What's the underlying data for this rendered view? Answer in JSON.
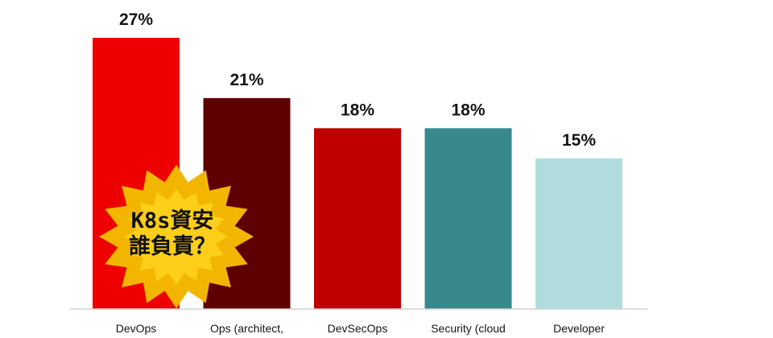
{
  "chart_data": {
    "type": "bar",
    "categories": [
      "DevOps",
      "Ops (architect,",
      "DevSecOps",
      "Security (cloud",
      "Developer"
    ],
    "values": [
      27,
      21,
      18,
      18,
      15
    ],
    "value_labels": [
      "27%",
      "21%",
      "18%",
      "18%",
      "15%"
    ],
    "unit": "%",
    "colors": [
      "#ee0000",
      "#5f0000",
      "#be0000",
      "#37898c",
      "#b1dcdf"
    ],
    "ylim": [
      0,
      27
    ],
    "title": "",
    "xlabel": "",
    "ylabel": "",
    "grid": false,
    "legend": "none"
  },
  "annotation": {
    "lines": [
      "K8s資安",
      "誰負責？"
    ],
    "fill_colors": [
      "#f2b600",
      "#ffd21f"
    ]
  }
}
